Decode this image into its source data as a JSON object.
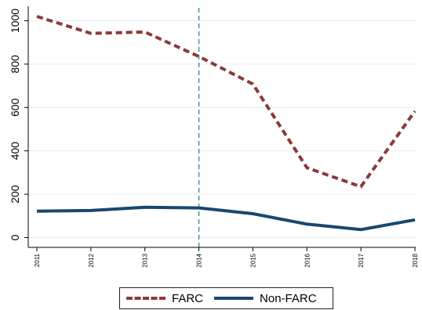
{
  "chart_data": {
    "type": "line",
    "x": [
      2011,
      2012,
      2013,
      2014,
      2015,
      2016,
      2017,
      2018
    ],
    "x_tick_labels": [
      "2011",
      "2012",
      "2013",
      "2014",
      "2015",
      "2016",
      "2017",
      "2018"
    ],
    "y_ticks": [
      0,
      200,
      400,
      600,
      800,
      1000
    ],
    "y_tick_labels": [
      "0",
      "200",
      "400",
      "600",
      "800",
      "1000"
    ],
    "ylim": [
      -40,
      1040
    ],
    "xlabel": "",
    "ylabel": "",
    "title": "",
    "grid": true,
    "legend_position": "bottom",
    "reference_line": {
      "x": 2014,
      "color": "#1e8a96",
      "style": "dashed"
    },
    "series": [
      {
        "name": "FARC",
        "values": [
          1020,
          942,
          948,
          835,
          708,
          322,
          235,
          583
        ],
        "color": "#8b3a3a",
        "style": "dashed"
      },
      {
        "name": "Non-FARC",
        "values": [
          122,
          125,
          140,
          137,
          110,
          62,
          37,
          82
        ],
        "color": "#1a476f",
        "style": "solid"
      }
    ]
  },
  "colors": {
    "grid": "#e8ecef",
    "axis": "#000000",
    "background": "#ffffff"
  }
}
